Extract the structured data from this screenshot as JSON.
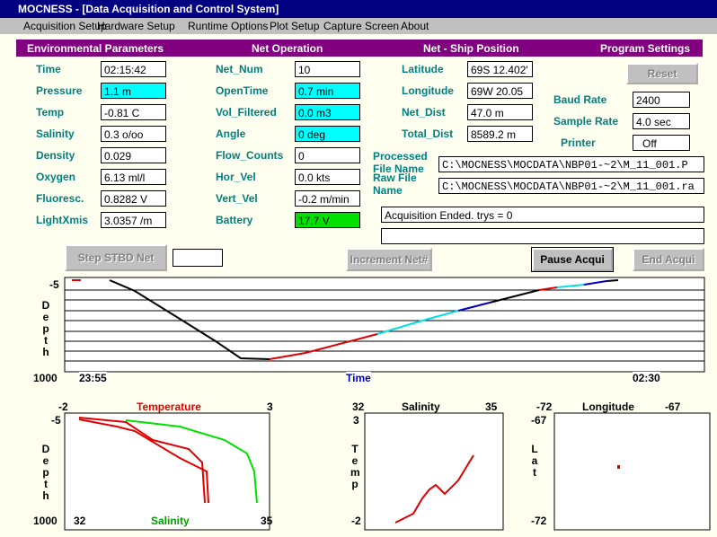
{
  "window": {
    "title": "MOCNESS - [Data Acquisition and Control System]"
  },
  "menu": [
    "Acquisition Setup",
    "Hardware Setup",
    "Runtime Options",
    "Plot Setup",
    "Capture Screen",
    "About"
  ],
  "sections": [
    "Environmental Parameters",
    "Net Operation",
    "Net - Ship Position",
    "Program Settings"
  ],
  "environmental": [
    {
      "label": "Time",
      "value": "02:15:42"
    },
    {
      "label": "Pressure",
      "value": "1.1 m"
    },
    {
      "label": "Temp",
      "value": "-0.81 C"
    },
    {
      "label": "Salinity",
      "value": "0.3 o/oo"
    },
    {
      "label": "Density",
      "value": "0.029"
    },
    {
      "label": "Oxygen",
      "value": "6.13 ml/l"
    },
    {
      "label": "Fluoresc.",
      "value": "0.8282 V"
    },
    {
      "label": "LightXmis",
      "value": "3.0357 /m"
    }
  ],
  "net_operation": [
    {
      "label": "Net_Num",
      "value": "10"
    },
    {
      "label": "OpenTime",
      "value": "0.7 min"
    },
    {
      "label": "Vol_Filtered",
      "value": "0.0 m3"
    },
    {
      "label": "Angle",
      "value": "0 deg"
    },
    {
      "label": "Flow_Counts",
      "value": "0"
    },
    {
      "label": "Hor_Vel",
      "value": "0.0 kts"
    },
    {
      "label": "Vert_Vel",
      "value": "-0.2 m/min"
    },
    {
      "label": "Battery",
      "value": "17.7 V"
    }
  ],
  "ship_position": [
    {
      "label": "Latitude",
      "value": "69S 12.402'"
    },
    {
      "label": "Longitude",
      "value": "69W 20.05"
    },
    {
      "label": "Net_Dist",
      "value": "47.0 m"
    },
    {
      "label": "Total_Dist",
      "value": "8589.2 m"
    }
  ],
  "settings": {
    "reset": "Reset",
    "fields": [
      {
        "label": "Baud Rate",
        "value": "2400"
      },
      {
        "label": "Sample Rate",
        "value": "4.0 sec"
      },
      {
        "label": "Printer",
        "value": "Off"
      }
    ]
  },
  "files": [
    {
      "label": "Processed File Name",
      "value": "C:\\MOCNESS\\MOCDATA\\NBP01-~2\\M_11_001.P"
    },
    {
      "label": "Raw File Name",
      "value": "C:\\MOCNESS\\MOCDATA\\NBP01-~2\\M_11_001.ra"
    }
  ],
  "status": "Acquisition Ended. trys = 0",
  "buttons": [
    "Step STBD Net",
    "Increment Net#",
    "Pause Acqui",
    "End Acqui"
  ],
  "plots": {
    "depth_time": {
      "ytop": "-5",
      "ybottom": "1000",
      "ylabel": "Depth",
      "xstart": "23:55",
      "xend": "02:30",
      "xlabel": "Time"
    },
    "temp_salinity": {
      "top_left": "-2",
      "top_title": "Temperature",
      "top_right": "3",
      "ytop": "-5",
      "ybottom": "1000",
      "ylabel": "Depth",
      "bottom_left": "32",
      "bottom_title": "Salinity",
      "bottom_right": "35"
    },
    "ts": {
      "top_left": "32",
      "top_title": "Salinity",
      "top_right": "35",
      "ytop": "3",
      "ybottom": "-2",
      "ylabel": "Temp"
    },
    "position": {
      "top_left": "-72",
      "top_title": "Longitude",
      "top_right": "-67",
      "ytop": "-67",
      "ybottom": "-72",
      "ylabel": "Lat"
    }
  }
}
